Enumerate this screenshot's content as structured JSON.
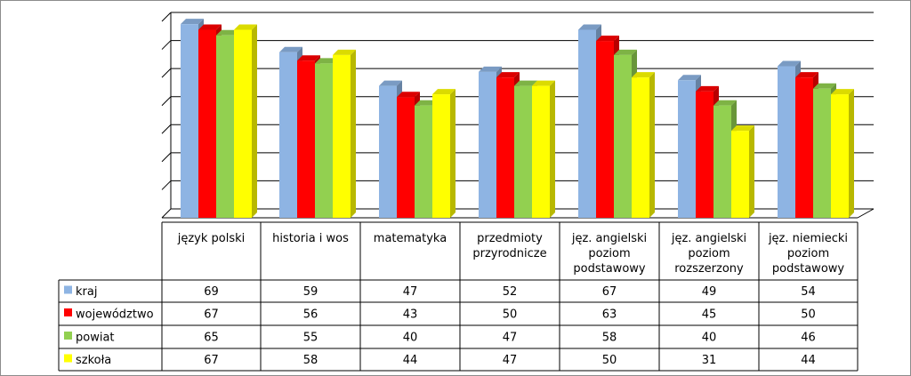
{
  "chart_data": {
    "type": "bar",
    "categories": [
      [
        "język polski"
      ],
      [
        "historia i wos"
      ],
      [
        "matematyka"
      ],
      [
        "przedmioty",
        "przyrodnicze"
      ],
      [
        "jęz. angielski",
        "poziom",
        "podstawowy"
      ],
      [
        "jęz. angielski",
        "poziom",
        "rozszerzony"
      ],
      [
        "jęz. niemiecki",
        "poziom",
        "podstawowy"
      ]
    ],
    "series": [
      {
        "name": "kraj",
        "values": [
          69,
          59,
          47,
          52,
          67,
          49,
          54
        ]
      },
      {
        "name": "województwo",
        "values": [
          67,
          56,
          43,
          50,
          63,
          45,
          50
        ]
      },
      {
        "name": "powiat",
        "values": [
          65,
          55,
          40,
          47,
          58,
          40,
          46
        ]
      },
      {
        "name": "szkoła",
        "values": [
          67,
          58,
          44,
          47,
          50,
          31,
          44
        ]
      }
    ],
    "ylim": [
      0,
      70
    ],
    "grid": true,
    "legend": "data-table",
    "bar_style": "3d"
  },
  "colors": {
    "kraj": "#8eb4e3",
    "województwo": "#ff0000",
    "powiat": "#92d050",
    "szkoła": "#ffff00"
  }
}
